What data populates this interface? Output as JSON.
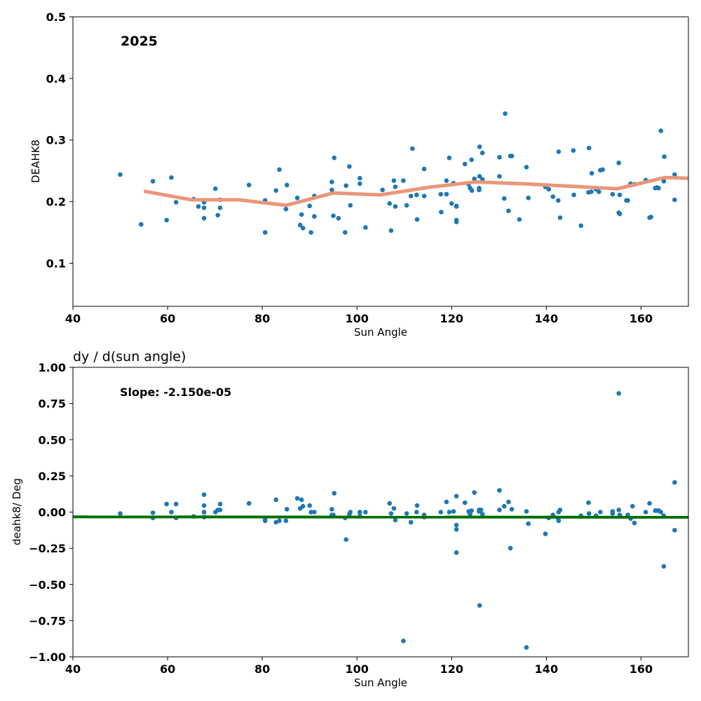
{
  "colors": {
    "points": "#1f77b4",
    "trend": "#e9967a",
    "fit": "#007000",
    "frame": "#000000",
    "background": "#ffffff"
  },
  "chart_data": [
    {
      "type": "scatter",
      "title": "",
      "annotation": "2025",
      "xlabel": "Sun Angle",
      "ylabel": "DEAHK8",
      "xlim": [
        40,
        170
      ],
      "ylim": [
        0.03,
        0.5
      ],
      "xticks": [
        40,
        60,
        80,
        100,
        120,
        140,
        160
      ],
      "yticks": [
        0.1,
        0.2,
        0.3,
        0.4,
        0.5
      ],
      "ytick_labels": [
        "0.1",
        "0.2",
        "0.3",
        "0.4",
        "0.5"
      ],
      "grid": false,
      "points": [
        [
          50,
          0.244
        ],
        [
          54.4,
          0.163
        ],
        [
          56.9,
          0.233
        ],
        [
          59.8,
          0.17
        ],
        [
          60.8,
          0.239
        ],
        [
          61.8,
          0.199
        ],
        [
          65.5,
          0.204
        ],
        [
          66.5,
          0.192
        ],
        [
          67.7,
          0.173
        ],
        [
          67.7,
          0.19
        ],
        [
          67.7,
          0.199
        ],
        [
          70.1,
          0.221
        ],
        [
          70.6,
          0.178
        ],
        [
          71.1,
          0.19
        ],
        [
          71.1,
          0.203
        ],
        [
          77.2,
          0.227
        ],
        [
          80.6,
          0.15
        ],
        [
          80.6,
          0.202
        ],
        [
          82.9,
          0.218
        ],
        [
          83.6,
          0.252
        ],
        [
          85,
          0.188
        ],
        [
          85.2,
          0.227
        ],
        [
          87.4,
          0.206
        ],
        [
          88,
          0.162
        ],
        [
          88.3,
          0.179
        ],
        [
          88.6,
          0.157
        ],
        [
          90,
          0.193
        ],
        [
          90.3,
          0.15
        ],
        [
          91,
          0.176
        ],
        [
          91,
          0.209
        ],
        [
          94.7,
          0.219
        ],
        [
          94.7,
          0.232
        ],
        [
          95,
          0.177
        ],
        [
          95.2,
          0.271
        ],
        [
          96.1,
          0.173
        ],
        [
          97.5,
          0.15
        ],
        [
          97.7,
          0.226
        ],
        [
          98.4,
          0.257
        ],
        [
          98.6,
          0.194
        ],
        [
          100.6,
          0.229
        ],
        [
          100.6,
          0.238
        ],
        [
          101.8,
          0.158
        ],
        [
          105.4,
          0.219
        ],
        [
          106.9,
          0.197
        ],
        [
          107.2,
          0.153
        ],
        [
          107.8,
          0.234
        ],
        [
          108.1,
          0.192
        ],
        [
          108.1,
          0.224
        ],
        [
          109.8,
          0.234
        ],
        [
          110.5,
          0.194
        ],
        [
          111.4,
          0.209
        ],
        [
          111.7,
          0.286
        ],
        [
          112.6,
          0.211
        ],
        [
          112.7,
          0.171
        ],
        [
          114.2,
          0.253
        ],
        [
          114.2,
          0.209
        ],
        [
          117.7,
          0.212
        ],
        [
          117.8,
          0.183
        ],
        [
          118.9,
          0.234
        ],
        [
          118.9,
          0.212
        ],
        [
          119.5,
          0.271
        ],
        [
          120,
          0.197
        ],
        [
          120.4,
          0.23
        ],
        [
          121,
          0.193
        ],
        [
          121,
          0.17
        ],
        [
          121,
          0.167
        ],
        [
          121,
          0.192
        ],
        [
          122.8,
          0.261
        ],
        [
          123.6,
          0.228
        ],
        [
          123.9,
          0.222
        ],
        [
          124.2,
          0.268
        ],
        [
          124.3,
          0.218
        ],
        [
          124.8,
          0.237
        ],
        [
          125.8,
          0.222
        ],
        [
          125.8,
          0.219
        ],
        [
          125.9,
          0.241
        ],
        [
          125.9,
          0.289
        ],
        [
          126.5,
          0.279
        ],
        [
          126.5,
          0.236
        ],
        [
          130.1,
          0.272
        ],
        [
          130.1,
          0.241
        ],
        [
          131.1,
          0.205
        ],
        [
          131.3,
          0.343
        ],
        [
          132,
          0.185
        ],
        [
          132.4,
          0.274
        ],
        [
          132.7,
          0.274
        ],
        [
          134.3,
          0.171
        ],
        [
          135.8,
          0.256
        ],
        [
          136.2,
          0.206
        ],
        [
          139.8,
          0.224
        ],
        [
          140.5,
          0.22
        ],
        [
          141.4,
          0.208
        ],
        [
          142.5,
          0.202
        ],
        [
          142.6,
          0.281
        ],
        [
          142.9,
          0.174
        ],
        [
          145.7,
          0.283
        ],
        [
          145.8,
          0.211
        ],
        [
          147.3,
          0.161
        ],
        [
          148.9,
          0.215
        ],
        [
          149,
          0.287
        ],
        [
          149.5,
          0.216
        ],
        [
          149.6,
          0.246
        ],
        [
          150.5,
          0.22
        ],
        [
          151.1,
          0.216
        ],
        [
          151.4,
          0.251
        ],
        [
          151.9,
          0.252
        ],
        [
          154,
          0.212
        ],
        [
          155.3,
          0.263
        ],
        [
          155.3,
          0.182
        ],
        [
          155.5,
          0.211
        ],
        [
          155.5,
          0.18
        ],
        [
          156.9,
          0.202
        ],
        [
          157.2,
          0.202
        ],
        [
          157.8,
          0.229
        ],
        [
          158.6,
          0.228
        ],
        [
          161,
          0.235
        ],
        [
          161.8,
          0.174
        ],
        [
          162.1,
          0.175
        ],
        [
          163,
          0.222
        ],
        [
          163.4,
          0.223
        ],
        [
          163.7,
          0.222
        ],
        [
          164.2,
          0.315
        ],
        [
          164.8,
          0.233
        ],
        [
          164.9,
          0.273
        ],
        [
          167.1,
          0.244
        ],
        [
          167.1,
          0.203
        ]
      ],
      "trend_line": {
        "x": [
          55,
          65,
          75,
          85,
          95,
          105,
          115,
          125,
          135,
          145,
          155,
          165,
          170
        ],
        "y": [
          0.217,
          0.203,
          0.203,
          0.194,
          0.214,
          0.211,
          0.223,
          0.232,
          0.229,
          0.225,
          0.221,
          0.239,
          0.238
        ]
      }
    },
    {
      "type": "scatter",
      "title": "dy / d(sun angle)",
      "annotation": "Slope: -2.150e-05",
      "xlabel": "Sun Angle",
      "ylabel": "deahk8/ Deg",
      "xlim": [
        40,
        170
      ],
      "ylim": [
        -1.0,
        1.0
      ],
      "xticks": [
        40,
        60,
        80,
        100,
        120,
        140,
        160
      ],
      "yticks": [
        -1.0,
        -0.75,
        -0.5,
        -0.25,
        0.0,
        0.25,
        0.5,
        0.75,
        1.0
      ],
      "ytick_labels": [
        "−1.00",
        "−0.75",
        "−0.50",
        "−0.25",
        "0.00",
        "0.25",
        "0.50",
        "0.75",
        "1.00"
      ],
      "grid": false,
      "points": [
        [
          50,
          -0.01
        ],
        [
          56.9,
          -0.04
        ],
        [
          56.9,
          -0.005
        ],
        [
          59.8,
          0.055
        ],
        [
          60.8,
          0
        ],
        [
          61.8,
          -0.04
        ],
        [
          61.8,
          0.055
        ],
        [
          65.5,
          -0.03
        ],
        [
          67.7,
          0.12
        ],
        [
          67.7,
          0.045
        ],
        [
          67.7,
          0
        ],
        [
          67.7,
          -0.035
        ],
        [
          70.1,
          0
        ],
        [
          70.6,
          0.015
        ],
        [
          71.1,
          0.055
        ],
        [
          71.1,
          0.015
        ],
        [
          77.2,
          0.06
        ],
        [
          80.6,
          -0.06
        ],
        [
          80.6,
          -0.045
        ],
        [
          82.9,
          -0.07
        ],
        [
          82.9,
          0.085
        ],
        [
          83.6,
          -0.06
        ],
        [
          85,
          -0.06
        ],
        [
          85.2,
          0.02
        ],
        [
          87.4,
          0.095
        ],
        [
          88,
          0.025
        ],
        [
          88.3,
          0.085
        ],
        [
          88.6,
          0.04
        ],
        [
          90,
          0.045
        ],
        [
          90.3,
          0
        ],
        [
          91,
          0
        ],
        [
          94.7,
          0.02
        ],
        [
          94.7,
          -0.02
        ],
        [
          95,
          -0.02
        ],
        [
          95.2,
          0.13
        ],
        [
          97.5,
          -0.04
        ],
        [
          97.7,
          -0.19
        ],
        [
          98.4,
          -0.015
        ],
        [
          98.6,
          0
        ],
        [
          100.6,
          0
        ],
        [
          100.6,
          -0.025
        ],
        [
          101.8,
          0
        ],
        [
          106.9,
          0.06
        ],
        [
          107.2,
          -0.01
        ],
        [
          107.8,
          0.025
        ],
        [
          108.1,
          -0.055
        ],
        [
          109.8,
          -0.89
        ],
        [
          110.5,
          -0.01
        ],
        [
          111.4,
          -0.07
        ],
        [
          112.6,
          0
        ],
        [
          112.7,
          0.045
        ],
        [
          114.2,
          -0.02
        ],
        [
          114.2,
          -0.035
        ],
        [
          117.7,
          0
        ],
        [
          118.9,
          0.07
        ],
        [
          119.5,
          0
        ],
        [
          120.4,
          0.005
        ],
        [
          121,
          0.11
        ],
        [
          121,
          -0.09
        ],
        [
          121,
          -0.12
        ],
        [
          121,
          -0.28
        ],
        [
          122.8,
          0.065
        ],
        [
          123.6,
          0.005
        ],
        [
          123.9,
          -0.015
        ],
        [
          124.2,
          0.01
        ],
        [
          124.8,
          0.135
        ],
        [
          125.8,
          0.005
        ],
        [
          125.8,
          0.015
        ],
        [
          125.9,
          -0.645
        ],
        [
          126.2,
          0.015
        ],
        [
          126.5,
          -0.015
        ],
        [
          130.1,
          0.15
        ],
        [
          130.1,
          0.015
        ],
        [
          131.1,
          0.04
        ],
        [
          132,
          0.07
        ],
        [
          132.4,
          -0.25
        ],
        [
          132.7,
          0.02
        ],
        [
          135.8,
          0.005
        ],
        [
          135.8,
          -0.935
        ],
        [
          136.2,
          -0.08
        ],
        [
          139.8,
          -0.15
        ],
        [
          140.5,
          -0.04
        ],
        [
          141.4,
          -0.02
        ],
        [
          142.5,
          -0.045
        ],
        [
          142.6,
          -0.06
        ],
        [
          142.6,
          0
        ],
        [
          142.9,
          0.015
        ],
        [
          147.3,
          -0.025
        ],
        [
          148.9,
          0.065
        ],
        [
          149,
          -0.01
        ],
        [
          150.5,
          -0.025
        ],
        [
          151.4,
          0
        ],
        [
          154,
          -0.01
        ],
        [
          154,
          0.005
        ],
        [
          155.3,
          0.82
        ],
        [
          155.3,
          0.015
        ],
        [
          155.5,
          -0.02
        ],
        [
          157.2,
          -0.02
        ],
        [
          157.8,
          -0.045
        ],
        [
          158.2,
          0.04
        ],
        [
          158.6,
          -0.075
        ],
        [
          161,
          0
        ],
        [
          161.8,
          0.06
        ],
        [
          163,
          0.01
        ],
        [
          163.4,
          0.01
        ],
        [
          163.7,
          0.01
        ],
        [
          164.2,
          0
        ],
        [
          164.8,
          -0.025
        ],
        [
          164.8,
          -0.375
        ],
        [
          167.1,
          0.205
        ],
        [
          167.1,
          -0.125
        ]
      ],
      "fit_line": {
        "x": [
          40,
          170
        ],
        "y": [
          -0.033,
          -0.036
        ]
      }
    }
  ]
}
